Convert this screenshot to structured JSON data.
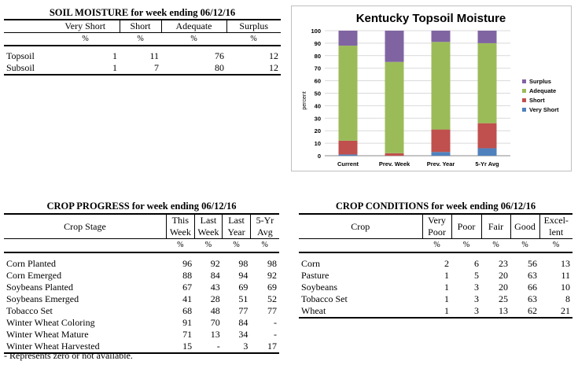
{
  "soil_moisture": {
    "title": "SOIL MOISTURE for week ending 06/12/16",
    "columns": [
      "Very Short",
      "Short",
      "Adequate",
      "Surplus"
    ],
    "units": [
      "%",
      "%",
      "%",
      "%"
    ],
    "rows": [
      {
        "label": "Topsoil",
        "values": [
          "1",
          "11",
          "76",
          "12"
        ]
      },
      {
        "label": "Subsoil",
        "values": [
          "1",
          "7",
          "80",
          "12"
        ]
      }
    ]
  },
  "chart_data": {
    "type": "bar",
    "stacked": true,
    "title": "Kentucky Topsoil Moisture",
    "ylabel": "percent",
    "xlabel": "",
    "ylim": [
      0,
      100
    ],
    "yticks": [
      0,
      10,
      20,
      30,
      40,
      50,
      60,
      70,
      80,
      90,
      100
    ],
    "grid": true,
    "legend_position": "right",
    "categories": [
      "Current",
      "Prev. Week",
      "Prev. Year",
      "5-Yr Avg"
    ],
    "series": [
      {
        "name": "Very Short",
        "color": "#4f81bd",
        "values": [
          1,
          0,
          3,
          6
        ]
      },
      {
        "name": "Short",
        "color": "#c0504d",
        "values": [
          11,
          2,
          18,
          20
        ]
      },
      {
        "name": "Adequate",
        "color": "#9bbb59",
        "values": [
          76,
          73,
          70,
          64
        ]
      },
      {
        "name": "Surplus",
        "color": "#8064a2",
        "values": [
          12,
          25,
          9,
          10
        ]
      }
    ],
    "legend_order": [
      "Surplus",
      "Adequate",
      "Short",
      "Very Short"
    ]
  },
  "crop_progress": {
    "title": "CROP PROGRESS for week ending 06/12/16",
    "stage_header": "Crop Stage",
    "columns": [
      {
        "line1": "This",
        "line2": "Week"
      },
      {
        "line1": "Last",
        "line2": "Week"
      },
      {
        "line1": "Last",
        "line2": "Year"
      },
      {
        "line1": "5-Yr",
        "line2": "Avg"
      }
    ],
    "units": [
      "%",
      "%",
      "%",
      "%"
    ],
    "rows": [
      {
        "label": "Corn Planted",
        "values": [
          "96",
          "92",
          "98",
          "98"
        ]
      },
      {
        "label": "Corn Emerged",
        "values": [
          "88",
          "84",
          "94",
          "92"
        ]
      },
      {
        "label": "Soybeans Planted",
        "values": [
          "67",
          "43",
          "69",
          "69"
        ]
      },
      {
        "label": "Soybeans Emerged",
        "values": [
          "41",
          "28",
          "51",
          "52"
        ]
      },
      {
        "label": "Tobacco Set",
        "values": [
          "68",
          "48",
          "77",
          "77"
        ]
      },
      {
        "label": "Winter Wheat Coloring",
        "values": [
          "91",
          "70",
          "84",
          "-"
        ]
      },
      {
        "label": "Winter Wheat Mature",
        "values": [
          "71",
          "13",
          "34",
          "-"
        ]
      },
      {
        "label": "Winter Wheat Harvested",
        "values": [
          "15",
          "-",
          "3",
          "17"
        ]
      }
    ],
    "footnote": "- Represents zero or not available."
  },
  "crop_conditions": {
    "title": "CROP CONDITIONS for week ending 06/12/16",
    "crop_header": "Crop",
    "columns": [
      {
        "line1": "Very",
        "line2": "Poor"
      },
      {
        "line1": "Poor",
        "line2": ""
      },
      {
        "line1": "Fair",
        "line2": ""
      },
      {
        "line1": "Good",
        "line2": ""
      },
      {
        "line1": "Excel-",
        "line2": "lent"
      }
    ],
    "units": [
      "%",
      "%",
      "%",
      "%",
      "%"
    ],
    "rows": [
      {
        "label": "Corn",
        "values": [
          "2",
          "6",
          "23",
          "56",
          "13"
        ]
      },
      {
        "label": "Pasture",
        "values": [
          "1",
          "5",
          "20",
          "63",
          "11"
        ]
      },
      {
        "label": "Soybeans",
        "values": [
          "1",
          "3",
          "20",
          "66",
          "10"
        ]
      },
      {
        "label": "Tobacco Set",
        "values": [
          "1",
          "3",
          "25",
          "63",
          "8"
        ]
      },
      {
        "label": "Wheat",
        "values": [
          "1",
          "3",
          "13",
          "62",
          "21"
        ]
      }
    ]
  }
}
